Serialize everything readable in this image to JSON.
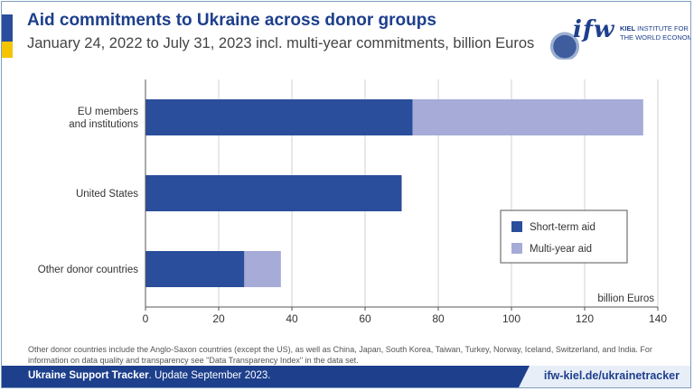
{
  "header": {
    "title": "Aid commitments to Ukraine across donor groups",
    "subtitle": "January 24, 2022 to July 31, 2023 incl. multi-year commitments, billion Euros"
  },
  "logo": {
    "word": "ifw",
    "line1_bold": "KIEL",
    "line1_rest": " INSTITUTE FOR",
    "line2": "THE WORLD ECONOMY"
  },
  "colors": {
    "short_term": "#2a4e9b",
    "multi_year": "#a6abd7",
    "brand_blue": "#1d3f8c",
    "brand_yellow": "#f5c400"
  },
  "chart_data": {
    "type": "bar",
    "orientation": "horizontal",
    "stacked": true,
    "categories": [
      "EU members\nand institutions",
      "United States",
      "Other donor countries"
    ],
    "series": [
      {
        "name": "Short-term aid",
        "values": [
          73,
          70,
          27
        ]
      },
      {
        "name": "Multi-year aid",
        "values": [
          63,
          0,
          10
        ]
      }
    ],
    "xlim": [
      0,
      140
    ],
    "xticks": [
      0,
      20,
      40,
      60,
      80,
      100,
      120,
      140
    ],
    "unit_label": "billion Euros",
    "legend_position": "right",
    "grid": "vertical"
  },
  "footnote": "Other donor countries include the Anglo-Saxon countries (except the US), as well as China, Japan, South Korea, Taiwan, Turkey, Norway, Iceland, Switzerland, and India. For information on data quality and transparency see \"Data Transparency Index\" in the data set.",
  "footer": {
    "name": "Ukraine Support Tracker",
    "update": ". Update September 2023.",
    "link": "ifw-kiel.de/ukrainetracker"
  }
}
